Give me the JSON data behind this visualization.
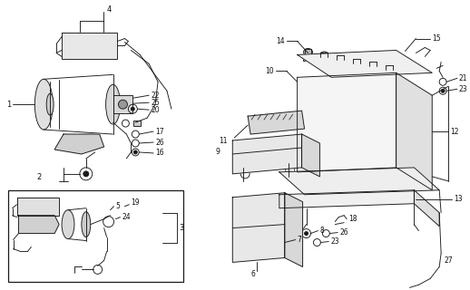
{
  "bg_color": "#ffffff",
  "line_color": "#1a1a1a",
  "label_color": "#111111",
  "fig_width": 5.18,
  "fig_height": 3.2,
  "dpi": 100
}
